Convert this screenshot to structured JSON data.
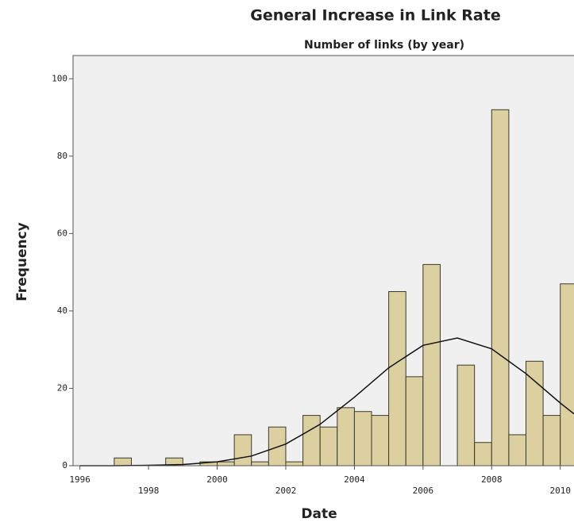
{
  "chart_data": {
    "type": "histogram",
    "title": "General Increase in Link Rate",
    "subtitle": "Number of links (by year)",
    "x_label": "Date",
    "y_label": "Frequency",
    "bins": [
      1997,
      1997.5,
      1998,
      1998.5,
      1999,
      1999.5,
      2000,
      2000.5,
      2001,
      2001.5,
      2002,
      2002.5,
      2003,
      2003.5,
      2004,
      2004.5,
      2005,
      2005.5,
      2006,
      2006.5,
      2007,
      2007.5,
      2008,
      2008.5,
      2009,
      2009.5,
      2010,
      2010.5
    ],
    "values": [
      2,
      0,
      0,
      2,
      0,
      1,
      1,
      8,
      1,
      10,
      1,
      13,
      10,
      15,
      14,
      13,
      45,
      23,
      52,
      0,
      26,
      6,
      92,
      8,
      27,
      13,
      47
    ],
    "color": "#dcd0a0",
    "normal_curve": {
      "x": [
        1996,
        1997,
        1998,
        1999,
        2000,
        2001,
        2002,
        2003,
        2004,
        2005,
        2006,
        2007,
        2008,
        2009,
        2010,
        2010.4
      ],
      "values": [
        0,
        0,
        0.1,
        0.3,
        1,
        2.5,
        5.6,
        10.7,
        17.7,
        25.3,
        31.1,
        33,
        30.2,
        23.8,
        16.2,
        13.4
      ]
    },
    "xlim": [
      1995.8,
      2010.4
    ],
    "ylim": [
      0,
      106
    ],
    "xticks": [
      1996,
      1998,
      2000,
      2002,
      2004,
      2006,
      2008,
      2010
    ],
    "yticks": [
      0,
      20,
      40,
      60,
      80,
      100
    ]
  }
}
